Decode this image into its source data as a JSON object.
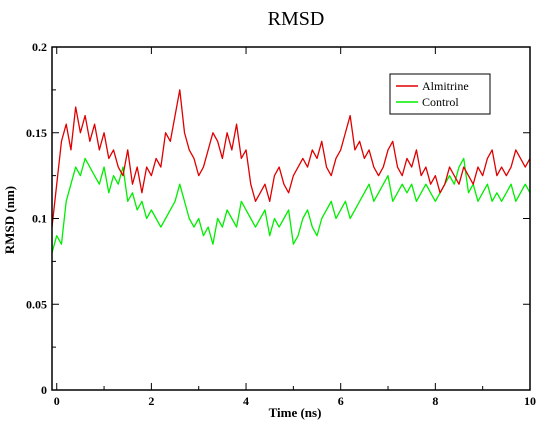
{
  "chart_data": {
    "type": "line",
    "title": "RMSD",
    "xlabel": "Time (ns)",
    "ylabel": "RMSD (nm)",
    "xlim": [
      -0.1,
      10
    ],
    "ylim": [
      0,
      0.2
    ],
    "xticks": [
      0,
      2,
      4,
      6,
      8,
      10
    ],
    "xtick_labels": [
      "0",
      "2",
      "4",
      "6",
      "8",
      "10"
    ],
    "yticks": [
      0,
      0.05,
      0.1,
      0.15,
      0.2
    ],
    "ytick_labels": [
      "0",
      "0.05",
      "0.1",
      "0.15",
      "0.2"
    ],
    "grid": false,
    "legend_position": "top-right",
    "series": [
      {
        "name": "Almitrine",
        "color": "#e00000",
        "x": [
          -0.1,
          0.0,
          0.1,
          0.2,
          0.3,
          0.4,
          0.5,
          0.6,
          0.7,
          0.8,
          0.9,
          1.0,
          1.1,
          1.2,
          1.3,
          1.4,
          1.5,
          1.6,
          1.7,
          1.8,
          1.9,
          2.0,
          2.1,
          2.2,
          2.3,
          2.4,
          2.5,
          2.6,
          2.7,
          2.8,
          2.9,
          3.0,
          3.1,
          3.2,
          3.3,
          3.4,
          3.5,
          3.6,
          3.7,
          3.8,
          3.9,
          4.0,
          4.1,
          4.2,
          4.3,
          4.4,
          4.5,
          4.6,
          4.7,
          4.8,
          4.9,
          5.0,
          5.1,
          5.2,
          5.3,
          5.4,
          5.5,
          5.6,
          5.7,
          5.8,
          5.9,
          6.0,
          6.1,
          6.2,
          6.3,
          6.4,
          6.5,
          6.6,
          6.7,
          6.8,
          6.9,
          7.0,
          7.1,
          7.2,
          7.3,
          7.4,
          7.5,
          7.6,
          7.7,
          7.8,
          7.9,
          8.0,
          8.1,
          8.2,
          8.3,
          8.4,
          8.5,
          8.6,
          8.7,
          8.8,
          8.9,
          9.0,
          9.1,
          9.2,
          9.3,
          9.4,
          9.5,
          9.6,
          9.7,
          9.8,
          9.9,
          10.0
        ],
        "values": [
          0.095,
          0.12,
          0.145,
          0.155,
          0.14,
          0.165,
          0.15,
          0.16,
          0.145,
          0.155,
          0.14,
          0.15,
          0.135,
          0.14,
          0.13,
          0.125,
          0.14,
          0.12,
          0.13,
          0.115,
          0.13,
          0.125,
          0.135,
          0.13,
          0.15,
          0.145,
          0.16,
          0.175,
          0.15,
          0.14,
          0.135,
          0.125,
          0.13,
          0.14,
          0.15,
          0.145,
          0.135,
          0.15,
          0.14,
          0.155,
          0.135,
          0.14,
          0.12,
          0.11,
          0.115,
          0.12,
          0.11,
          0.125,
          0.13,
          0.12,
          0.115,
          0.125,
          0.13,
          0.135,
          0.13,
          0.14,
          0.135,
          0.145,
          0.13,
          0.125,
          0.135,
          0.14,
          0.15,
          0.16,
          0.14,
          0.145,
          0.135,
          0.14,
          0.13,
          0.125,
          0.13,
          0.14,
          0.145,
          0.13,
          0.125,
          0.135,
          0.13,
          0.14,
          0.125,
          0.13,
          0.12,
          0.125,
          0.115,
          0.12,
          0.13,
          0.125,
          0.12,
          0.13,
          0.125,
          0.12,
          0.13,
          0.125,
          0.135,
          0.14,
          0.125,
          0.13,
          0.125,
          0.13,
          0.14,
          0.135,
          0.13,
          0.135
        ]
      },
      {
        "name": "Control",
        "color": "#00ee00",
        "x": [
          -0.1,
          0.0,
          0.1,
          0.2,
          0.3,
          0.4,
          0.5,
          0.6,
          0.7,
          0.8,
          0.9,
          1.0,
          1.1,
          1.2,
          1.3,
          1.4,
          1.5,
          1.6,
          1.7,
          1.8,
          1.9,
          2.0,
          2.1,
          2.2,
          2.3,
          2.4,
          2.5,
          2.6,
          2.7,
          2.8,
          2.9,
          3.0,
          3.1,
          3.2,
          3.3,
          3.4,
          3.5,
          3.6,
          3.7,
          3.8,
          3.9,
          4.0,
          4.1,
          4.2,
          4.3,
          4.4,
          4.5,
          4.6,
          4.7,
          4.8,
          4.9,
          5.0,
          5.1,
          5.2,
          5.3,
          5.4,
          5.5,
          5.6,
          5.7,
          5.8,
          5.9,
          6.0,
          6.1,
          6.2,
          6.3,
          6.4,
          6.5,
          6.6,
          6.7,
          6.8,
          6.9,
          7.0,
          7.1,
          7.2,
          7.3,
          7.4,
          7.5,
          7.6,
          7.7,
          7.8,
          7.9,
          8.0,
          8.1,
          8.2,
          8.3,
          8.4,
          8.5,
          8.6,
          8.7,
          8.8,
          8.9,
          9.0,
          9.1,
          9.2,
          9.3,
          9.4,
          9.5,
          9.6,
          9.7,
          9.8,
          9.9,
          10.0
        ],
        "values": [
          0.08,
          0.09,
          0.085,
          0.11,
          0.12,
          0.13,
          0.125,
          0.135,
          0.13,
          0.125,
          0.12,
          0.13,
          0.115,
          0.125,
          0.12,
          0.13,
          0.11,
          0.115,
          0.105,
          0.11,
          0.1,
          0.105,
          0.1,
          0.095,
          0.1,
          0.105,
          0.11,
          0.12,
          0.11,
          0.1,
          0.095,
          0.1,
          0.09,
          0.095,
          0.085,
          0.1,
          0.095,
          0.105,
          0.1,
          0.095,
          0.11,
          0.105,
          0.1,
          0.095,
          0.1,
          0.105,
          0.09,
          0.1,
          0.095,
          0.1,
          0.105,
          0.085,
          0.09,
          0.1,
          0.105,
          0.095,
          0.09,
          0.1,
          0.105,
          0.11,
          0.1,
          0.105,
          0.11,
          0.1,
          0.105,
          0.11,
          0.115,
          0.12,
          0.11,
          0.115,
          0.12,
          0.125,
          0.11,
          0.115,
          0.12,
          0.115,
          0.12,
          0.11,
          0.115,
          0.12,
          0.115,
          0.11,
          0.115,
          0.12,
          0.125,
          0.12,
          0.13,
          0.135,
          0.115,
          0.12,
          0.11,
          0.115,
          0.12,
          0.11,
          0.115,
          0.11,
          0.115,
          0.12,
          0.11,
          0.115,
          0.12,
          0.115
        ]
      }
    ]
  }
}
